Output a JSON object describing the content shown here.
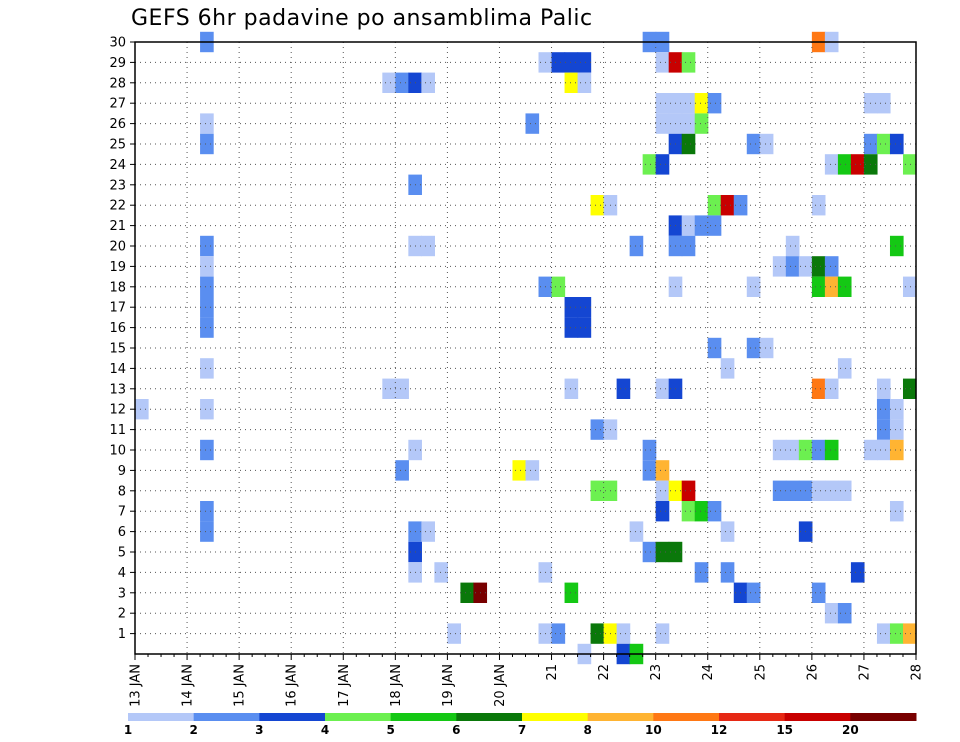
{
  "chart_data": {
    "type": "heatmap",
    "title": "GEFS 6hr padavine po ansamblima Palic",
    "xlabel": "",
    "ylabel": "",
    "x_tick_labels": [
      "13 JAN",
      "14 JAN",
      "15 JAN",
      "16 JAN",
      "17 JAN",
      "18 JAN",
      "19 JAN",
      "20 JAN",
      "21",
      "22",
      "23",
      "24",
      "25",
      "26",
      "27",
      "28"
    ],
    "y_tick_labels": [
      "1",
      "2",
      "3",
      "4",
      "5",
      "6",
      "7",
      "8",
      "9",
      "10",
      "11",
      "12",
      "13",
      "14",
      "15",
      "16",
      "17",
      "18",
      "19",
      "20",
      "21",
      "22",
      "23",
      "24",
      "25",
      "26",
      "27",
      "28",
      "29",
      "30"
    ],
    "x_range_days": [
      13,
      28
    ],
    "y_range": [
      0,
      30
    ],
    "grid": true,
    "legend_position": "bottom",
    "legend": {
      "labels": [
        "1",
        "2",
        "3",
        "4",
        "5",
        "6",
        "7",
        "8",
        "10",
        "12",
        "15",
        "20"
      ],
      "colors": [
        "#b4c8f8",
        "#5a8ef0",
        "#1446d2",
        "#6cf050",
        "#14c814",
        "#0a780a",
        "#ffff00",
        "#ffb432",
        "#ff7814",
        "#e62814",
        "#c80000",
        "#780000"
      ]
    },
    "cells": [
      {
        "member": 30,
        "time": 14.25,
        "class": 2
      },
      {
        "member": 30,
        "time": 22.75,
        "class": 2
      },
      {
        "member": 30,
        "time": 23.0,
        "class": 2
      },
      {
        "member": 30,
        "time": 26.0,
        "class": 9
      },
      {
        "member": 30,
        "time": 26.25,
        "class": 1
      },
      {
        "member": 29,
        "time": 20.75,
        "class": 1
      },
      {
        "member": 29,
        "time": 21.0,
        "class": 3
      },
      {
        "member": 29,
        "time": 21.25,
        "class": 3
      },
      {
        "member": 29,
        "time": 21.5,
        "class": 3
      },
      {
        "member": 29,
        "time": 23.0,
        "class": 1
      },
      {
        "member": 29,
        "time": 23.25,
        "class": 11
      },
      {
        "member": 29,
        "time": 23.5,
        "class": 4
      },
      {
        "member": 28,
        "time": 17.75,
        "class": 1
      },
      {
        "member": 28,
        "time": 18.0,
        "class": 2
      },
      {
        "member": 28,
        "time": 18.25,
        "class": 3
      },
      {
        "member": 28,
        "time": 18.5,
        "class": 1
      },
      {
        "member": 28,
        "time": 21.25,
        "class": 7
      },
      {
        "member": 28,
        "time": 21.5,
        "class": 1
      },
      {
        "member": 27,
        "time": 23.0,
        "class": 1
      },
      {
        "member": 27,
        "time": 23.25,
        "class": 1
      },
      {
        "member": 27,
        "time": 23.5,
        "class": 1
      },
      {
        "member": 27,
        "time": 23.75,
        "class": 7
      },
      {
        "member": 27,
        "time": 24.0,
        "class": 2
      },
      {
        "member": 27,
        "time": 27.0,
        "class": 1
      },
      {
        "member": 27,
        "time": 27.25,
        "class": 1
      },
      {
        "member": 26,
        "time": 14.25,
        "class": 1
      },
      {
        "member": 26,
        "time": 20.5,
        "class": 2
      },
      {
        "member": 26,
        "time": 23.0,
        "class": 1
      },
      {
        "member": 26,
        "time": 23.25,
        "class": 1
      },
      {
        "member": 26,
        "time": 23.5,
        "class": 1
      },
      {
        "member": 26,
        "time": 23.75,
        "class": 4
      },
      {
        "member": 25,
        "time": 14.25,
        "class": 2
      },
      {
        "member": 25,
        "time": 23.25,
        "class": 3
      },
      {
        "member": 25,
        "time": 23.5,
        "class": 6
      },
      {
        "member": 25,
        "time": 24.75,
        "class": 2
      },
      {
        "member": 25,
        "time": 25.0,
        "class": 1
      },
      {
        "member": 25,
        "time": 27.0,
        "class": 2
      },
      {
        "member": 25,
        "time": 27.25,
        "class": 4
      },
      {
        "member": 25,
        "time": 27.5,
        "class": 3
      },
      {
        "member": 24,
        "time": 22.75,
        "class": 4
      },
      {
        "member": 24,
        "time": 23.0,
        "class": 3
      },
      {
        "member": 24,
        "time": 26.25,
        "class": 1
      },
      {
        "member": 24,
        "time": 26.5,
        "class": 5
      },
      {
        "member": 24,
        "time": 26.75,
        "class": 11
      },
      {
        "member": 24,
        "time": 27.0,
        "class": 6
      },
      {
        "member": 24,
        "time": 27.75,
        "class": 4
      },
      {
        "member": 23,
        "time": 18.25,
        "class": 2
      },
      {
        "member": 22,
        "time": 21.75,
        "class": 7
      },
      {
        "member": 22,
        "time": 22.0,
        "class": 1
      },
      {
        "member": 22,
        "time": 24.0,
        "class": 4
      },
      {
        "member": 22,
        "time": 24.25,
        "class": 11
      },
      {
        "member": 22,
        "time": 24.5,
        "class": 2
      },
      {
        "member": 22,
        "time": 26.0,
        "class": 1
      },
      {
        "member": 21,
        "time": 23.25,
        "class": 3
      },
      {
        "member": 21,
        "time": 23.5,
        "class": 1
      },
      {
        "member": 21,
        "time": 23.75,
        "class": 2
      },
      {
        "member": 21,
        "time": 24.0,
        "class": 2
      },
      {
        "member": 20,
        "time": 14.25,
        "class": 2
      },
      {
        "member": 20,
        "time": 18.25,
        "class": 1
      },
      {
        "member": 20,
        "time": 18.5,
        "class": 1
      },
      {
        "member": 20,
        "time": 22.5,
        "class": 2
      },
      {
        "member": 20,
        "time": 23.25,
        "class": 2
      },
      {
        "member": 20,
        "time": 23.5,
        "class": 2
      },
      {
        "member": 20,
        "time": 25.5,
        "class": 1
      },
      {
        "member": 20,
        "time": 27.5,
        "class": 5
      },
      {
        "member": 19,
        "time": 14.25,
        "class": 1
      },
      {
        "member": 19,
        "time": 25.25,
        "class": 1
      },
      {
        "member": 19,
        "time": 25.5,
        "class": 2
      },
      {
        "member": 19,
        "time": 25.75,
        "class": 1
      },
      {
        "member": 19,
        "time": 26.0,
        "class": 6
      },
      {
        "member": 19,
        "time": 26.25,
        "class": 2
      },
      {
        "member": 18,
        "time": 14.25,
        "class": 2
      },
      {
        "member": 18,
        "time": 20.75,
        "class": 2
      },
      {
        "member": 18,
        "time": 21.0,
        "class": 4
      },
      {
        "member": 18,
        "time": 23.25,
        "class": 1
      },
      {
        "member": 18,
        "time": 24.75,
        "class": 1
      },
      {
        "member": 18,
        "time": 26.0,
        "class": 5
      },
      {
        "member": 18,
        "time": 26.25,
        "class": 8
      },
      {
        "member": 18,
        "time": 26.5,
        "class": 5
      },
      {
        "member": 18,
        "time": 27.75,
        "class": 1
      },
      {
        "member": 17,
        "time": 14.25,
        "class": 2
      },
      {
        "member": 17,
        "time": 21.25,
        "class": 3
      },
      {
        "member": 17,
        "time": 21.5,
        "class": 3
      },
      {
        "member": 16,
        "time": 14.25,
        "class": 2
      },
      {
        "member": 16,
        "time": 21.25,
        "class": 3
      },
      {
        "member": 16,
        "time": 21.5,
        "class": 3
      },
      {
        "member": 15,
        "time": 24.0,
        "class": 2
      },
      {
        "member": 15,
        "time": 24.75,
        "class": 2
      },
      {
        "member": 15,
        "time": 25.0,
        "class": 1
      },
      {
        "member": 14,
        "time": 14.25,
        "class": 1
      },
      {
        "member": 14,
        "time": 24.25,
        "class": 1
      },
      {
        "member": 14,
        "time": 26.5,
        "class": 1
      },
      {
        "member": 13,
        "time": 17.75,
        "class": 1
      },
      {
        "member": 13,
        "time": 18.0,
        "class": 1
      },
      {
        "member": 13,
        "time": 21.25,
        "class": 1
      },
      {
        "member": 13,
        "time": 22.25,
        "class": 3
      },
      {
        "member": 13,
        "time": 23.0,
        "class": 1
      },
      {
        "member": 13,
        "time": 23.25,
        "class": 3
      },
      {
        "member": 13,
        "time": 26.0,
        "class": 9
      },
      {
        "member": 13,
        "time": 26.25,
        "class": 1
      },
      {
        "member": 13,
        "time": 27.25,
        "class": 1
      },
      {
        "member": 13,
        "time": 27.75,
        "class": 6
      },
      {
        "member": 12,
        "time": 13.0,
        "class": 1
      },
      {
        "member": 12,
        "time": 14.25,
        "class": 1
      },
      {
        "member": 12,
        "time": 27.25,
        "class": 2
      },
      {
        "member": 12,
        "time": 27.5,
        "class": 1
      },
      {
        "member": 11,
        "time": 21.75,
        "class": 2
      },
      {
        "member": 11,
        "time": 22.0,
        "class": 1
      },
      {
        "member": 11,
        "time": 27.25,
        "class": 2
      },
      {
        "member": 11,
        "time": 27.5,
        "class": 1
      },
      {
        "member": 10,
        "time": 14.25,
        "class": 2
      },
      {
        "member": 10,
        "time": 18.25,
        "class": 1
      },
      {
        "member": 10,
        "time": 22.75,
        "class": 2
      },
      {
        "member": 10,
        "time": 25.25,
        "class": 1
      },
      {
        "member": 10,
        "time": 25.5,
        "class": 1
      },
      {
        "member": 10,
        "time": 25.75,
        "class": 4
      },
      {
        "member": 10,
        "time": 26.0,
        "class": 2
      },
      {
        "member": 10,
        "time": 26.25,
        "class": 5
      },
      {
        "member": 10,
        "time": 27.0,
        "class": 1
      },
      {
        "member": 10,
        "time": 27.25,
        "class": 1
      },
      {
        "member": 10,
        "time": 27.5,
        "class": 8
      },
      {
        "member": 9,
        "time": 18.0,
        "class": 2
      },
      {
        "member": 9,
        "time": 20.25,
        "class": 7
      },
      {
        "member": 9,
        "time": 20.5,
        "class": 1
      },
      {
        "member": 9,
        "time": 22.75,
        "class": 2
      },
      {
        "member": 9,
        "time": 23.0,
        "class": 8
      },
      {
        "member": 8,
        "time": 21.75,
        "class": 4
      },
      {
        "member": 8,
        "time": 22.0,
        "class": 4
      },
      {
        "member": 8,
        "time": 23.0,
        "class": 1
      },
      {
        "member": 8,
        "time": 23.25,
        "class": 7
      },
      {
        "member": 8,
        "time": 23.5,
        "class": 11
      },
      {
        "member": 8,
        "time": 25.25,
        "class": 2
      },
      {
        "member": 8,
        "time": 25.5,
        "class": 2
      },
      {
        "member": 8,
        "time": 25.75,
        "class": 2
      },
      {
        "member": 8,
        "time": 26.0,
        "class": 1
      },
      {
        "member": 8,
        "time": 26.25,
        "class": 1
      },
      {
        "member": 8,
        "time": 26.5,
        "class": 1
      },
      {
        "member": 7,
        "time": 14.25,
        "class": 2
      },
      {
        "member": 7,
        "time": 23.0,
        "class": 3
      },
      {
        "member": 7,
        "time": 23.5,
        "class": 4
      },
      {
        "member": 7,
        "time": 23.75,
        "class": 5
      },
      {
        "member": 7,
        "time": 24.0,
        "class": 2
      },
      {
        "member": 7,
        "time": 27.5,
        "class": 1
      },
      {
        "member": 6,
        "time": 14.25,
        "class": 2
      },
      {
        "member": 6,
        "time": 18.25,
        "class": 2
      },
      {
        "member": 6,
        "time": 18.5,
        "class": 1
      },
      {
        "member": 6,
        "time": 22.5,
        "class": 1
      },
      {
        "member": 6,
        "time": 24.25,
        "class": 1
      },
      {
        "member": 6,
        "time": 25.75,
        "class": 3
      },
      {
        "member": 5,
        "time": 18.25,
        "class": 3
      },
      {
        "member": 5,
        "time": 22.75,
        "class": 2
      },
      {
        "member": 5,
        "time": 23.0,
        "class": 6
      },
      {
        "member": 5,
        "time": 23.25,
        "class": 6
      },
      {
        "member": 4,
        "time": 18.25,
        "class": 1
      },
      {
        "member": 4,
        "time": 18.75,
        "class": 1
      },
      {
        "member": 4,
        "time": 20.75,
        "class": 1
      },
      {
        "member": 4,
        "time": 23.75,
        "class": 2
      },
      {
        "member": 4,
        "time": 24.25,
        "class": 2
      },
      {
        "member": 4,
        "time": 26.75,
        "class": 3
      },
      {
        "member": 3,
        "time": 19.25,
        "class": 6
      },
      {
        "member": 3,
        "time": 19.5,
        "class": 12
      },
      {
        "member": 3,
        "time": 21.25,
        "class": 5
      },
      {
        "member": 3,
        "time": 24.5,
        "class": 3
      },
      {
        "member": 3,
        "time": 24.75,
        "class": 2
      },
      {
        "member": 3,
        "time": 26.0,
        "class": 2
      },
      {
        "member": 2,
        "time": 26.25,
        "class": 1
      },
      {
        "member": 2,
        "time": 26.5,
        "class": 2
      },
      {
        "member": 1,
        "time": 19.0,
        "class": 1
      },
      {
        "member": 1,
        "time": 20.75,
        "class": 1
      },
      {
        "member": 1,
        "time": 21.0,
        "class": 2
      },
      {
        "member": 1,
        "time": 21.75,
        "class": 6
      },
      {
        "member": 1,
        "time": 22.0,
        "class": 7
      },
      {
        "member": 1,
        "time": 22.25,
        "class": 1
      },
      {
        "member": 1,
        "time": 23.0,
        "class": 1
      },
      {
        "member": 1,
        "time": 27.25,
        "class": 1
      },
      {
        "member": 1,
        "time": 27.5,
        "class": 4
      },
      {
        "member": 1,
        "time": 27.75,
        "class": 8
      },
      {
        "member": 0,
        "time": 21.5,
        "class": 1
      },
      {
        "member": 0,
        "time": 22.25,
        "class": 3
      },
      {
        "member": 0,
        "time": 22.5,
        "class": 5
      }
    ]
  }
}
